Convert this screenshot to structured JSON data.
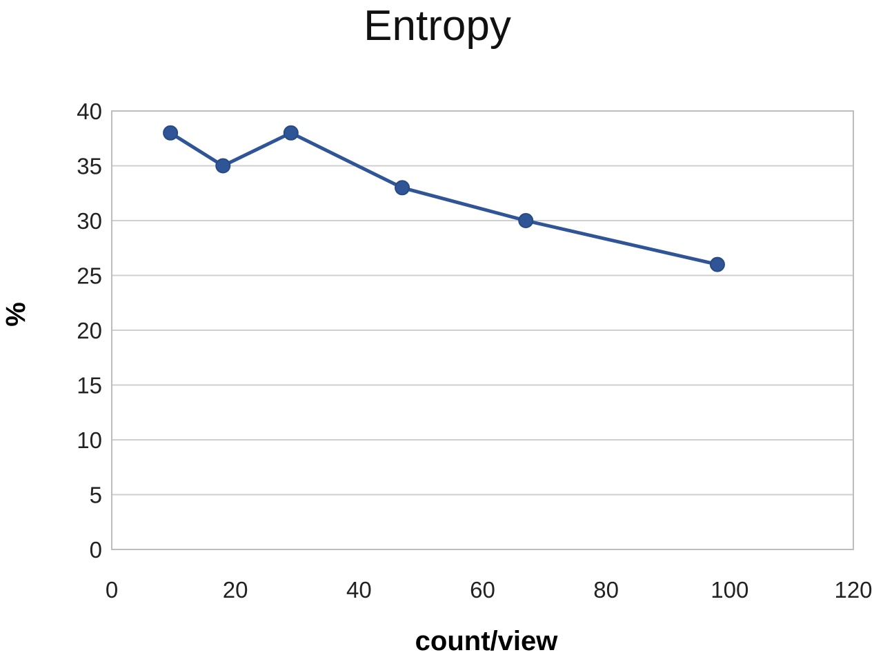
{
  "chart_data": {
    "type": "line",
    "title": "Entropy",
    "xlabel": "count/view",
    "ylabel": "%",
    "xlim": [
      0,
      120
    ],
    "ylim": [
      0,
      40
    ],
    "x_ticks": [
      0,
      20,
      40,
      60,
      80,
      100,
      120
    ],
    "y_ticks": [
      0,
      5,
      10,
      15,
      20,
      25,
      30,
      35,
      40
    ],
    "grid": true,
    "legend": "none",
    "series": [
      {
        "x": [
          9.5,
          18,
          29,
          47,
          67,
          98
        ],
        "y": [
          38,
          35,
          38,
          33,
          30,
          26
        ],
        "color": "#2f5597",
        "marker": "circle"
      }
    ]
  }
}
